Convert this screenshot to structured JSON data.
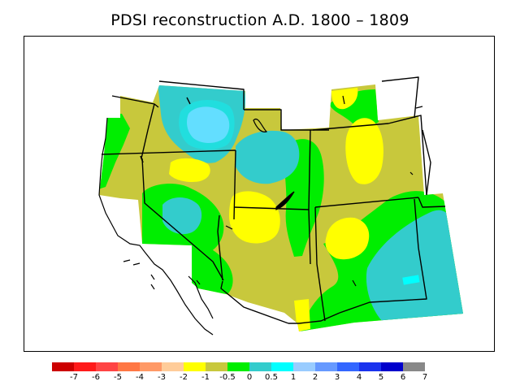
{
  "title": "PDSI reconstruction A.D. 1800 – 1809",
  "legend": {
    "colors": [
      "#cc0000",
      "#ff1a1a",
      "#ff4444",
      "#ff7744",
      "#ff9966",
      "#ffcc99",
      "#ffff00",
      "#c8c83c",
      "#00ee00",
      "#33cccc",
      "#00ffff",
      "#99ccff",
      "#6699ff",
      "#3366ff",
      "#1a33ee",
      "#0000cc",
      "#888888"
    ],
    "labels": [
      "-7",
      "-6",
      "-5",
      "-4",
      "-3",
      "-2",
      "-1",
      "-0.5",
      "0",
      "0.5",
      "1",
      "2",
      "3",
      "4",
      "5",
      "6",
      "7"
    ]
  },
  "palette": {
    "olive": "#c8c83c",
    "green": "#00ee00",
    "teal": "#33cccc",
    "yellow": "#ffff00",
    "lightblue": "#99ccff",
    "cyan": "#00ffff"
  }
}
